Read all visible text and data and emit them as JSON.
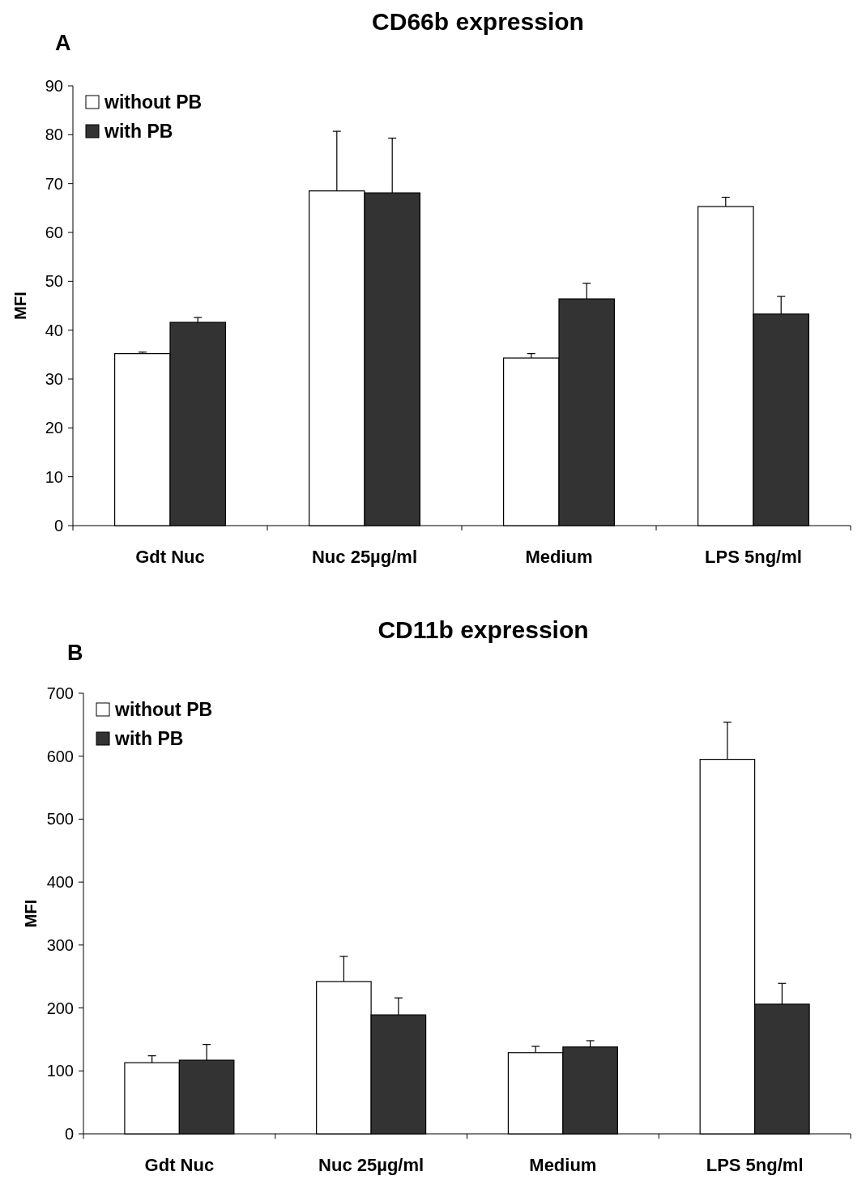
{
  "chart_data": [
    {
      "type": "bar",
      "title": "CD66b expression",
      "ylabel": "MFI",
      "annotations": [
        "A"
      ],
      "categories": [
        "Gdt Nuc",
        "Nuc 25µg/ml",
        "Medium",
        "LPS 5ng/ml"
      ],
      "ylim": [
        0,
        90
      ],
      "yticks": [
        0,
        10,
        20,
        30,
        40,
        50,
        60,
        70,
        80,
        90
      ],
      "legend": "top left",
      "series": [
        {
          "name": "without PB",
          "color": "#ffffff",
          "values": [
            35.2,
            68.5,
            34.3,
            65.3
          ],
          "errors": [
            [
              35.2,
              35.5
            ],
            [
              68.5,
              80.7
            ],
            [
              34.3,
              35.2
            ],
            [
              65.3,
              67.2
            ]
          ]
        },
        {
          "name": "with PB",
          "color": "#333333",
          "values": [
            41.6,
            68.1,
            46.4,
            43.3
          ],
          "errors": [
            [
              41.6,
              42.6
            ],
            [
              68.1,
              79.3
            ],
            [
              46.4,
              49.6
            ],
            [
              43.3,
              46.9
            ]
          ]
        }
      ]
    },
    {
      "type": "bar",
      "title": "CD11b expression",
      "ylabel": "MFI",
      "annotations": [
        "B"
      ],
      "categories": [
        "Gdt Nuc",
        "Nuc 25µg/ml",
        "Medium",
        "LPS 5ng/ml"
      ],
      "ylim": [
        0,
        700
      ],
      "yticks": [
        0,
        100,
        200,
        300,
        400,
        500,
        600,
        700
      ],
      "legend": "top left",
      "series": [
        {
          "name": "without PB",
          "color": "#ffffff",
          "values": [
            113,
            242,
            129,
            595
          ],
          "errors": [
            [
              113,
              124
            ],
            [
              242,
              282
            ],
            [
              129,
              139
            ],
            [
              595,
              654
            ]
          ]
        },
        {
          "name": "with PB",
          "color": "#333333",
          "values": [
            117,
            189,
            138,
            206
          ],
          "errors": [
            [
              117,
              142
            ],
            [
              189,
              216
            ],
            [
              138,
              148
            ],
            [
              206,
              239
            ]
          ]
        }
      ]
    }
  ]
}
